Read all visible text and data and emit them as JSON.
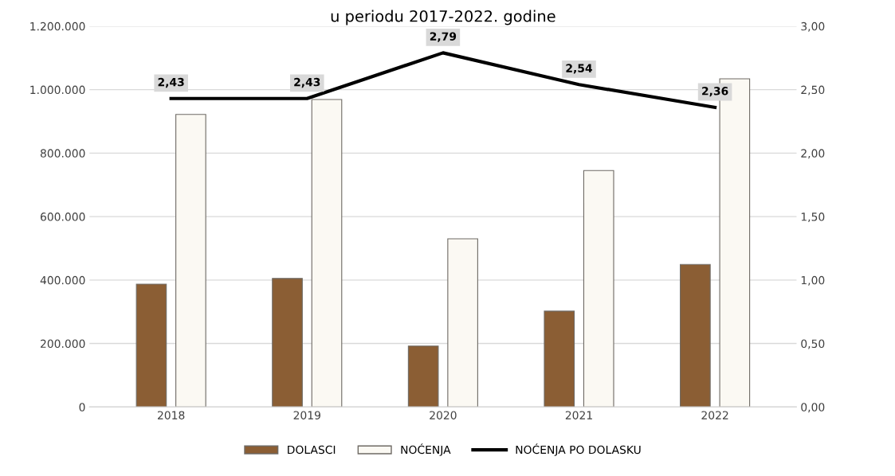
{
  "chart_data": {
    "type": "bar",
    "title": "u periodu 2017-2022. godine",
    "categories": [
      "2018",
      "2019",
      "2020",
      "2021",
      "2022"
    ],
    "series": [
      {
        "name": "DOLASCI",
        "color": "#8b5e34",
        "values": [
          387000,
          405000,
          192000,
          302000,
          449000
        ]
      },
      {
        "name": "NOĆENJA",
        "color": "#fbf9f3",
        "values": [
          922000,
          969000,
          530000,
          745000,
          1034000
        ]
      },
      {
        "name": "NOĆENJA PO DOLASKU",
        "type": "line",
        "axis": "y2",
        "color": "#000000",
        "values": [
          2.43,
          2.43,
          2.79,
          2.54,
          2.36
        ],
        "value_labels": [
          "2,43",
          "2,43",
          "2,79",
          "2,54",
          "2,36"
        ]
      }
    ],
    "ylim": [
      0,
      1200000
    ],
    "yticks": [
      {
        "value": 0,
        "label": "0"
      },
      {
        "value": 200000,
        "label": "200.000"
      },
      {
        "value": 400000,
        "label": "400.000"
      },
      {
        "value": 600000,
        "label": "600.000"
      },
      {
        "value": 800000,
        "label": "800.000"
      },
      {
        "value": 1000000,
        "label": "1.000.000"
      },
      {
        "value": 1200000,
        "label": "1.200.000"
      }
    ],
    "y2lim": [
      0,
      3
    ],
    "y2ticks": [
      {
        "value": 0,
        "label": "0,00"
      },
      {
        "value": 0.5,
        "label": "0,50"
      },
      {
        "value": 1,
        "label": "1,00"
      },
      {
        "value": 1.5,
        "label": "1,50"
      },
      {
        "value": 2,
        "label": "2,00"
      },
      {
        "value": 2.5,
        "label": "2,50"
      },
      {
        "value": 3,
        "label": "3,00"
      }
    ],
    "grid": "y",
    "legend": "bottom",
    "marker": "none",
    "line_style": "solid"
  }
}
